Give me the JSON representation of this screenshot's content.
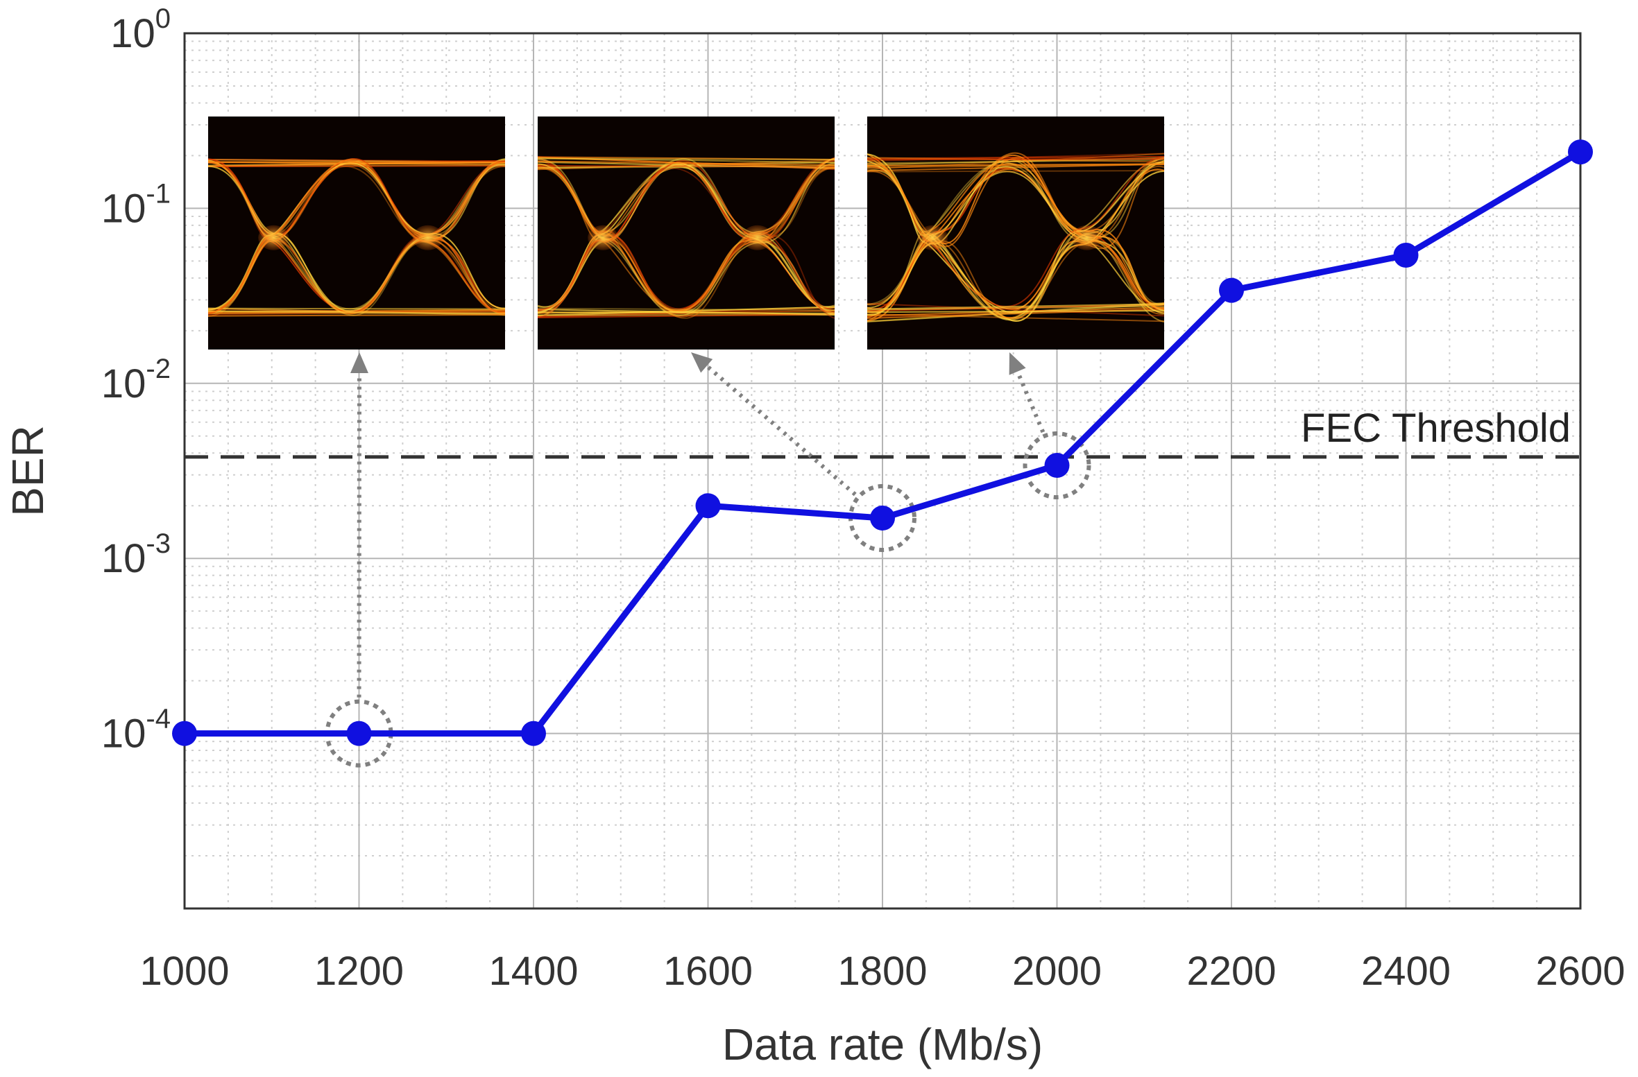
{
  "chart_data": {
    "type": "line",
    "xlabel": "Data rate (Mb/s)",
    "ylabel": "BER",
    "xlim": [
      1000,
      2600
    ],
    "ylim": [
      1e-05,
      1
    ],
    "yscale": "log",
    "grid": true,
    "minor_grid": true,
    "x_ticks": [
      1000,
      1200,
      1400,
      1600,
      1800,
      2000,
      2200,
      2400,
      2600
    ],
    "y_ticks": [
      {
        "base": "10",
        "exp": "-4",
        "value": 0.0001
      },
      {
        "base": "10",
        "exp": "-3",
        "value": 0.001
      },
      {
        "base": "10",
        "exp": "-2",
        "value": 0.01
      },
      {
        "base": "10",
        "exp": "-1",
        "value": 0.1
      },
      {
        "base": "10",
        "exp": "0",
        "value": 1
      }
    ],
    "series": [
      {
        "x": [
          1000,
          1200,
          1400,
          1600,
          1800,
          2000,
          2200,
          2400,
          2600
        ],
        "values": [
          0.0001,
          0.0001,
          0.0001,
          0.002,
          0.0017,
          0.0034,
          0.034,
          0.054,
          0.21
        ],
        "color": "#1010e0"
      }
    ],
    "threshold": {
      "label": "FEC Threshold",
      "value": 0.0038,
      "color": "#333333"
    },
    "highlighted_points": [
      1200,
      1800,
      2000
    ],
    "insets": [
      {
        "content": "eye-diagram",
        "points_to": 1200
      },
      {
        "content": "eye-diagram",
        "points_to": 1800
      },
      {
        "content": "eye-diagram",
        "points_to": 2000
      }
    ]
  }
}
